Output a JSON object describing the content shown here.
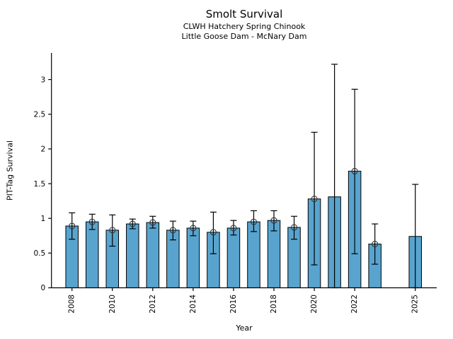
{
  "chart_data": {
    "type": "bar",
    "title": "Smolt Survival",
    "subtitle1": "CLWH Hatchery Spring Chinook",
    "subtitle2": "Little Goose Dam - McNary Dam",
    "xlabel": "Year",
    "ylabel": "PIT-Tag Survival",
    "ylim": [
      0,
      3.38
    ],
    "yticks": [
      0,
      0.5,
      1,
      1.5,
      2,
      2.5,
      3
    ],
    "ytick_labels": [
      "0",
      "0.5",
      "1",
      "1.5",
      "2",
      "2.5",
      "3"
    ],
    "xtick_years": [
      2008,
      2010,
      2012,
      2014,
      2016,
      2018,
      2020,
      2022,
      2025
    ],
    "xtick_labels": [
      "2008",
      "2010",
      "2012",
      "2014",
      "2016",
      "2018",
      "2020",
      "2022",
      "2025"
    ],
    "bar_color": "#58a4cf",
    "bar_edge_color": "#000000",
    "errorbar_color": "#000000",
    "marker_edge_color": "#333333",
    "grid": false,
    "legend": null,
    "points": [
      {
        "year": 2008,
        "value": 0.89,
        "ci_low": 0.7,
        "ci_high": 1.08,
        "marker": true
      },
      {
        "year": 2009,
        "value": 0.95,
        "ci_low": 0.84,
        "ci_high": 1.06,
        "marker": true
      },
      {
        "year": 2010,
        "value": 0.83,
        "ci_low": 0.6,
        "ci_high": 1.05,
        "marker": true
      },
      {
        "year": 2011,
        "value": 0.92,
        "ci_low": 0.85,
        "ci_high": 0.99,
        "marker": true
      },
      {
        "year": 2012,
        "value": 0.94,
        "ci_low": 0.86,
        "ci_high": 1.03,
        "marker": true
      },
      {
        "year": 2013,
        "value": 0.83,
        "ci_low": 0.69,
        "ci_high": 0.96,
        "marker": true
      },
      {
        "year": 2014,
        "value": 0.86,
        "ci_low": 0.75,
        "ci_high": 0.96,
        "marker": true
      },
      {
        "year": 2015,
        "value": 0.8,
        "ci_low": 0.49,
        "ci_high": 1.09,
        "marker": true
      },
      {
        "year": 2016,
        "value": 0.86,
        "ci_low": 0.76,
        "ci_high": 0.97,
        "marker": true
      },
      {
        "year": 2017,
        "value": 0.95,
        "ci_low": 0.81,
        "ci_high": 1.11,
        "marker": true
      },
      {
        "year": 2018,
        "value": 0.97,
        "ci_low": 0.82,
        "ci_high": 1.11,
        "marker": true
      },
      {
        "year": 2019,
        "value": 0.87,
        "ci_low": 0.7,
        "ci_high": 1.03,
        "marker": true
      },
      {
        "year": 2020,
        "value": 1.28,
        "ci_low": 0.33,
        "ci_high": 2.24,
        "marker": true
      },
      {
        "year": 2021,
        "value": 1.31,
        "ci_low": 0.0,
        "ci_high": 3.22,
        "marker": false
      },
      {
        "year": 2022,
        "value": 1.68,
        "ci_low": 0.49,
        "ci_high": 2.86,
        "marker": true
      },
      {
        "year": 2023,
        "value": 0.63,
        "ci_low": 0.34,
        "ci_high": 0.92,
        "marker": true
      },
      {
        "year": 2025,
        "value": 0.74,
        "ci_low": 0.0,
        "ci_high": 1.49,
        "marker": false
      }
    ]
  }
}
